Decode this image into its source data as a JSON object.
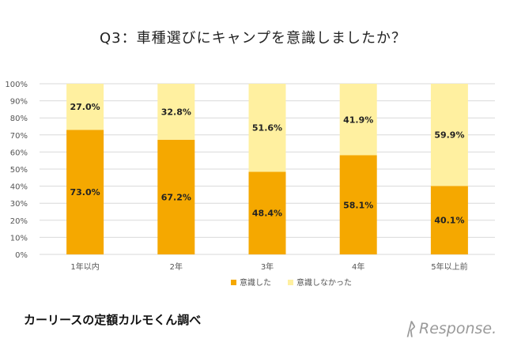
{
  "chart_data": {
    "type": "bar",
    "stacked": true,
    "title": "Q3：車種選びにキャンプを意識しましたか？",
    "categories": [
      "1年以内",
      "2年",
      "3年",
      "4年",
      "5年以上前"
    ],
    "series": [
      {
        "name": "意識した",
        "values": [
          73.0,
          67.2,
          48.4,
          58.1,
          40.1
        ],
        "color": "#F5A800"
      },
      {
        "name": "意識しなかった",
        "values": [
          27.0,
          32.8,
          51.6,
          41.9,
          59.9
        ],
        "color": "#FFF0A0"
      }
    ],
    "value_labels": [
      [
        "73.0%",
        "67.2%",
        "48.4%",
        "58.1%",
        "40.1%"
      ],
      [
        "27.0%",
        "32.8%",
        "51.6%",
        "41.9%",
        "59.9%"
      ]
    ],
    "y_ticks": [
      "0%",
      "10%",
      "20%",
      "30%",
      "40%",
      "50%",
      "60%",
      "70%",
      "80%",
      "90%",
      "100%"
    ],
    "ylim": [
      0,
      100
    ],
    "grid": true,
    "legend_position": "bottom"
  },
  "footer": {
    "source": "カーリースの定額カルモくん調べ",
    "logo_text": "Response."
  }
}
